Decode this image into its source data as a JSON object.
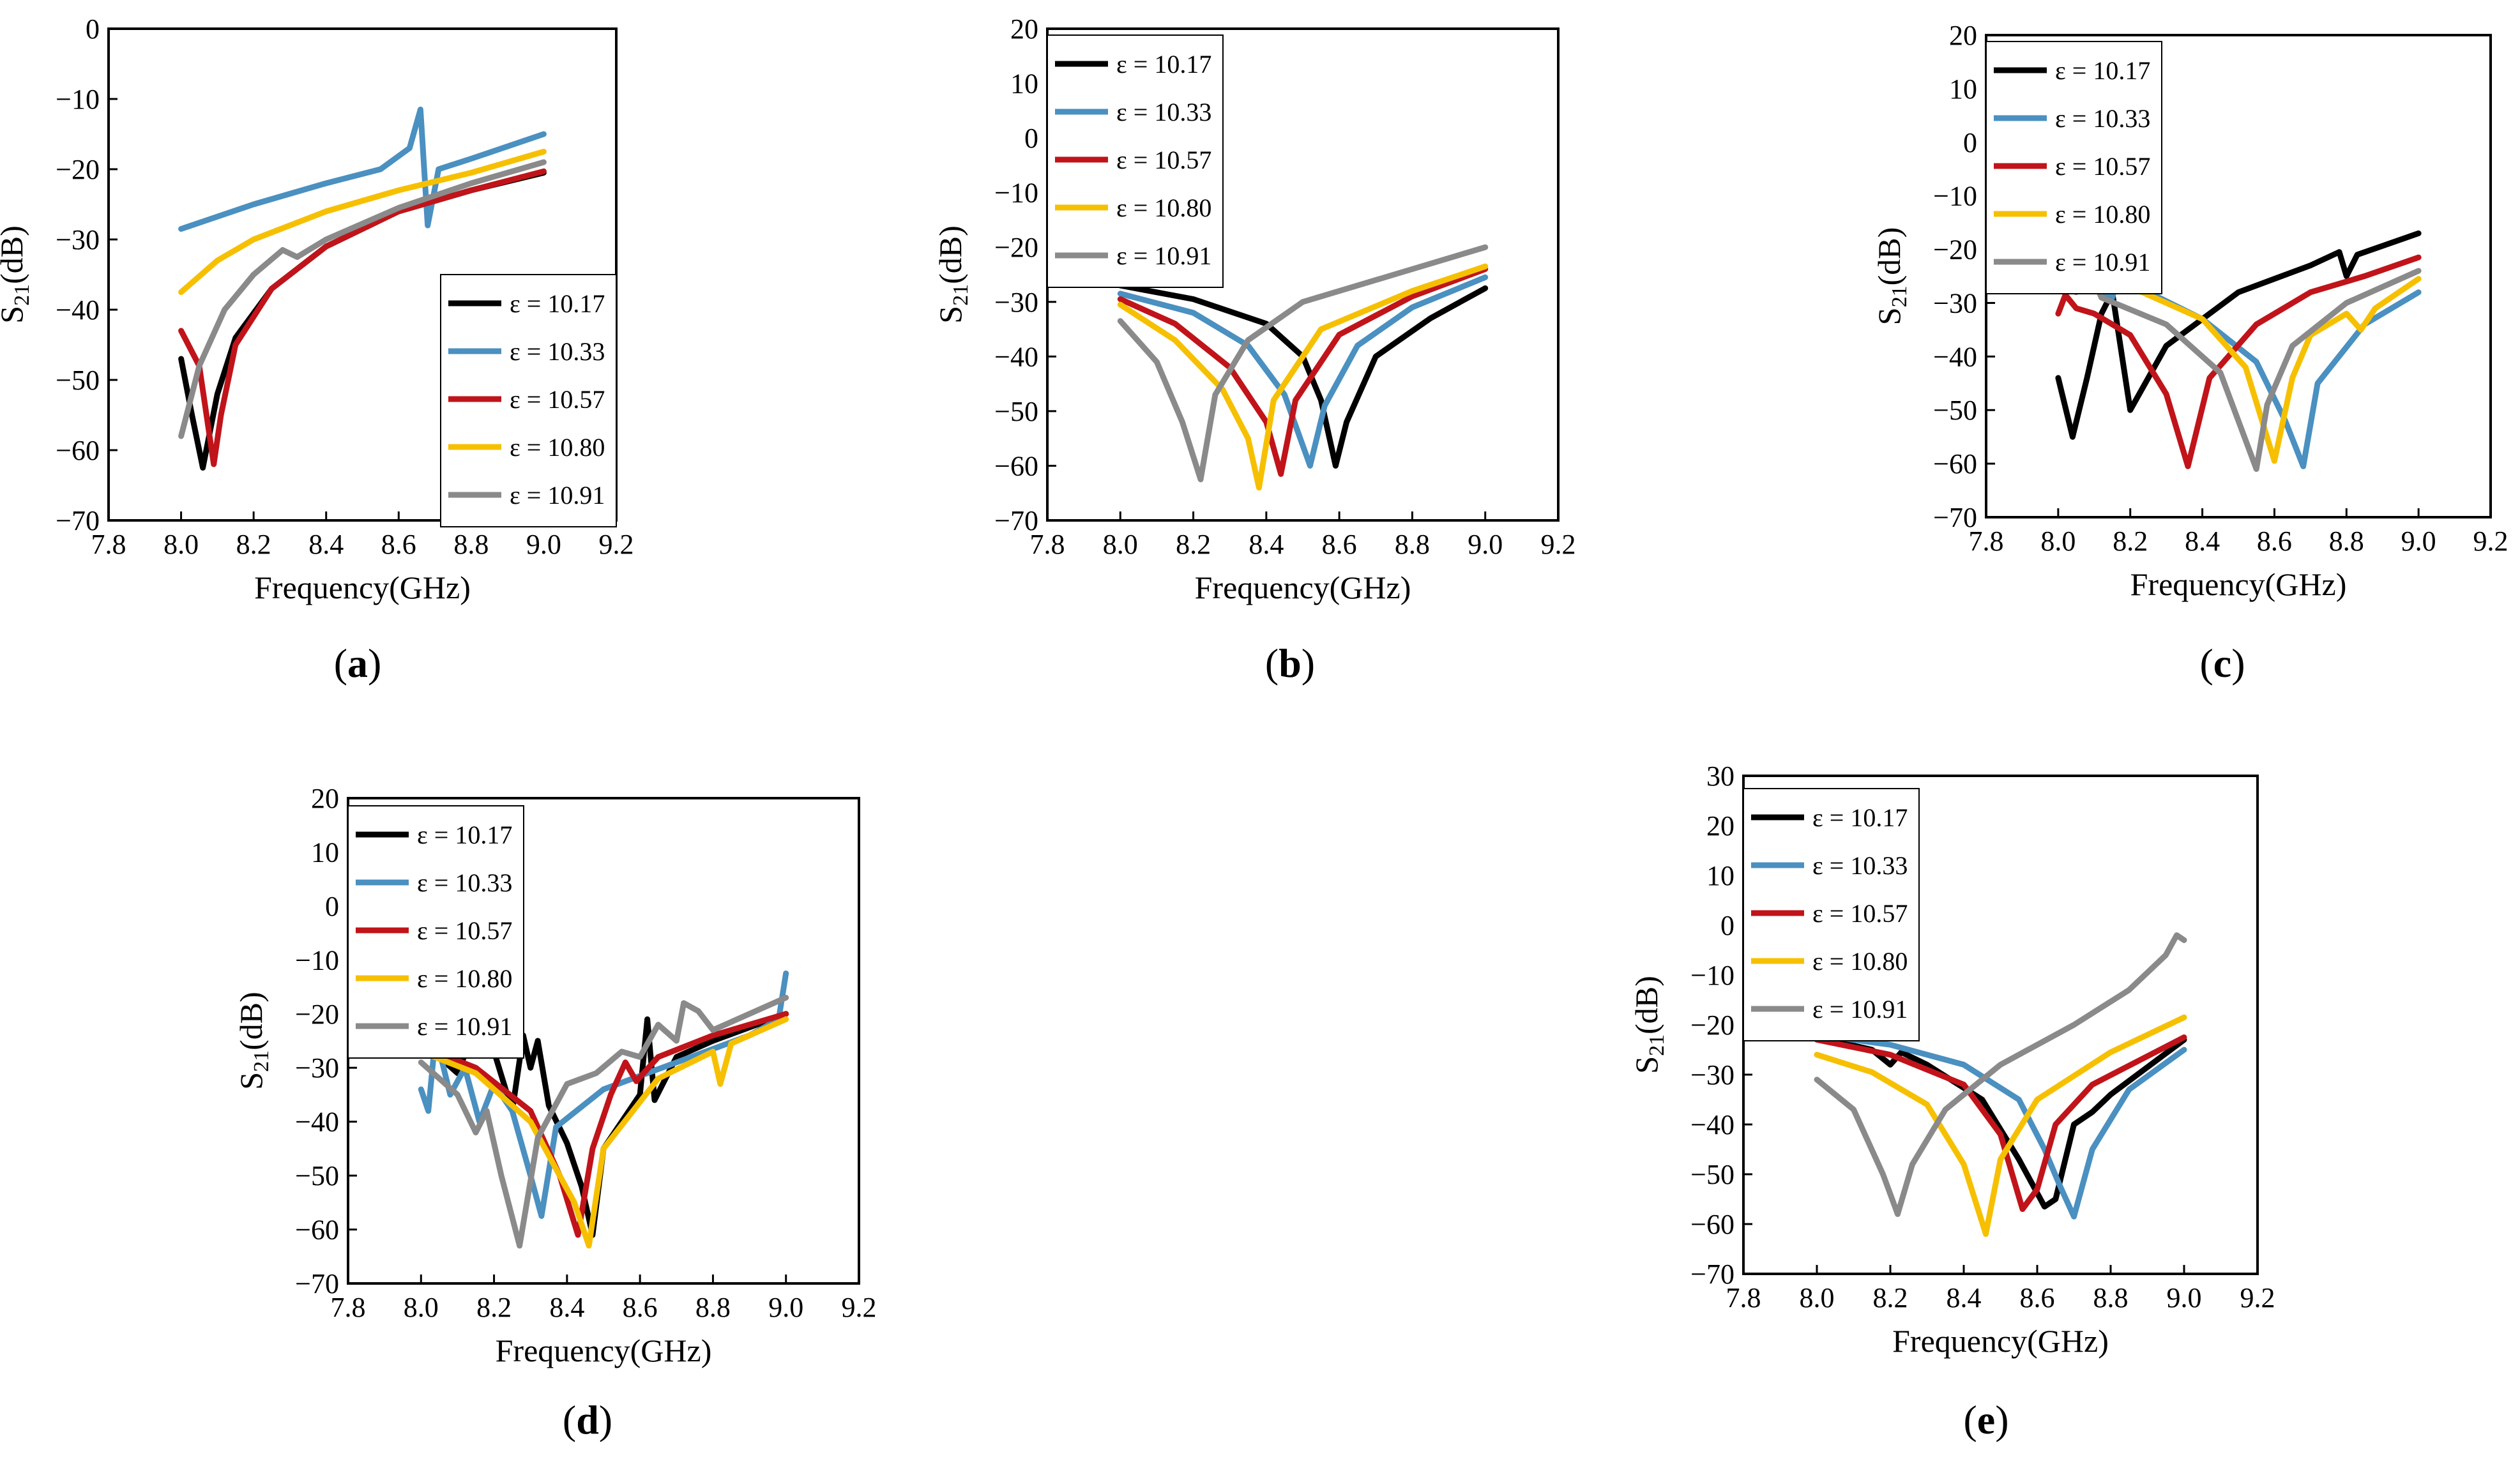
{
  "figure": {
    "series_colors": [
      "#000000",
      "#4a90c0",
      "#c0141a",
      "#f6c000",
      "#8a8a8a"
    ]
  },
  "chart_data": [
    {
      "type": "line",
      "panel_label": "a",
      "xlabel": "Frequency(GHz)",
      "ylabel_main": "S",
      "ylabel_sub": "21",
      "ylabel_unit": "(dB)",
      "xlim": [
        7.8,
        9.2
      ],
      "ylim": [
        -70,
        0
      ],
      "xticks": [
        "7.8",
        "8.0",
        "8.2",
        "8.4",
        "8.6",
        "8.8",
        "9.0",
        "9.2"
      ],
      "yticks": [
        "0",
        "−10",
        "−20",
        "−30",
        "−40",
        "−50",
        "−60",
        "−70"
      ],
      "legend_position": "bottom-right",
      "series": [
        {
          "name": "ε = 10.17",
          "x": [
            8.0,
            8.03,
            8.06,
            8.1,
            8.15,
            8.25,
            8.4,
            8.6,
            8.8,
            9.0
          ],
          "y": [
            -47,
            -55,
            -62.5,
            -52,
            -44,
            -37,
            -31,
            -26,
            -23,
            -20.5
          ]
        },
        {
          "name": "ε = 10.33",
          "x": [
            8.0,
            8.2,
            8.4,
            8.55,
            8.63,
            8.66,
            8.68,
            8.71,
            8.8,
            9.0
          ],
          "y": [
            -28.5,
            -25,
            -22,
            -20,
            -17,
            -11.5,
            -28,
            -20,
            -18.5,
            -15
          ]
        },
        {
          "name": "ε = 10.57",
          "x": [
            8.0,
            8.05,
            8.09,
            8.11,
            8.15,
            8.25,
            8.4,
            8.6,
            8.8,
            9.0
          ],
          "y": [
            -43,
            -48,
            -62,
            -55,
            -45,
            -37,
            -31,
            -26,
            -23,
            -20.3
          ]
        },
        {
          "name": "ε = 10.80",
          "x": [
            8.0,
            8.1,
            8.2,
            8.4,
            8.6,
            8.8,
            9.0
          ],
          "y": [
            -37.5,
            -33,
            -30,
            -26,
            -23,
            -20.5,
            -17.5
          ]
        },
        {
          "name": "ε = 10.91",
          "x": [
            8.0,
            8.05,
            8.12,
            8.2,
            8.28,
            8.32,
            8.4,
            8.6,
            8.8,
            9.0
          ],
          "y": [
            -58,
            -48,
            -40,
            -35,
            -31.5,
            -32.5,
            -30,
            -25.5,
            -22,
            -19
          ]
        }
      ]
    },
    {
      "type": "line",
      "panel_label": "b",
      "xlabel": "Frequency(GHz)",
      "ylabel_main": "S",
      "ylabel_sub": "21",
      "ylabel_unit": "(dB)",
      "xlim": [
        7.8,
        9.2
      ],
      "ylim": [
        -70,
        20
      ],
      "xticks": [
        "7.8",
        "8.0",
        "8.2",
        "8.4",
        "8.6",
        "8.8",
        "9.0",
        "9.2"
      ],
      "yticks": [
        "20",
        "10",
        "0",
        "−10",
        "−20",
        "−30",
        "−40",
        "−50",
        "−60",
        "−70"
      ],
      "legend_position": "top-left",
      "series": [
        {
          "name": "ε = 10.17",
          "x": [
            8.0,
            8.2,
            8.4,
            8.5,
            8.55,
            8.59,
            8.62,
            8.7,
            8.85,
            9.0
          ],
          "y": [
            -27,
            -29.5,
            -34,
            -40,
            -48,
            -60,
            -52,
            -40,
            -33,
            -27.5
          ]
        },
        {
          "name": "ε = 10.33",
          "x": [
            8.0,
            8.2,
            8.35,
            8.45,
            8.52,
            8.56,
            8.65,
            8.8,
            9.0
          ],
          "y": [
            -28.5,
            -32,
            -38,
            -47,
            -60,
            -49,
            -38,
            -31,
            -25.5
          ]
        },
        {
          "name": "ε = 10.57",
          "x": [
            8.0,
            8.15,
            8.3,
            8.4,
            8.44,
            8.48,
            8.6,
            8.8,
            9.0
          ],
          "y": [
            -29.5,
            -34,
            -42,
            -52,
            -61.5,
            -48,
            -36,
            -29,
            -24
          ]
        },
        {
          "name": "ε = 10.80",
          "x": [
            8.0,
            8.15,
            8.28,
            8.35,
            8.38,
            8.42,
            8.55,
            8.8,
            9.0
          ],
          "y": [
            -30.5,
            -37,
            -46,
            -55,
            -64,
            -48,
            -35,
            -28,
            -23.5
          ]
        },
        {
          "name": "ε = 10.91",
          "x": [
            8.0,
            8.1,
            8.17,
            8.22,
            8.26,
            8.35,
            8.5,
            8.75,
            9.0
          ],
          "y": [
            -33.5,
            -41,
            -52,
            -62.5,
            -47,
            -37,
            -30,
            -25,
            -20
          ]
        }
      ]
    },
    {
      "type": "line",
      "panel_label": "c",
      "xlabel": "Frequency(GHz)",
      "ylabel_main": "S",
      "ylabel_sub": "21",
      "ylabel_unit": "(dB)",
      "xlim": [
        7.8,
        9.2
      ],
      "ylim": [
        -70,
        20
      ],
      "xticks": [
        "7.8",
        "8.0",
        "8.2",
        "8.4",
        "8.6",
        "8.8",
        "9.0",
        "9.2"
      ],
      "yticks": [
        "20",
        "10",
        "0",
        "−10",
        "−20",
        "−30",
        "−40",
        "−50",
        "−60",
        "−70"
      ],
      "legend_position": "top-left",
      "series": [
        {
          "name": "ε = 10.17",
          "x": [
            8.0,
            8.04,
            8.08,
            8.12,
            8.15,
            8.2,
            8.3,
            8.5,
            8.7,
            8.78,
            8.8,
            8.83,
            9.0
          ],
          "y": [
            -44,
            -55,
            -44,
            -32,
            -28,
            -50,
            -38,
            -28,
            -23,
            -20.5,
            -25,
            -21,
            -17
          ]
        },
        {
          "name": "ε = 10.33",
          "x": [
            8.0,
            8.1,
            8.15,
            8.17,
            8.25,
            8.4,
            8.55,
            8.63,
            8.68,
            8.72,
            8.85,
            9.0
          ],
          "y": [
            -25,
            -27,
            -29,
            -24.5,
            -28,
            -33,
            -41,
            -52,
            -60.5,
            -45,
            -34,
            -28
          ]
        },
        {
          "name": "ε = 10.57",
          "x": [
            8.0,
            8.02,
            8.05,
            8.1,
            8.2,
            8.3,
            8.36,
            8.42,
            8.55,
            8.7,
            8.85,
            9.0
          ],
          "y": [
            -32,
            -28.5,
            -31,
            -32,
            -36,
            -47,
            -60.5,
            -44,
            -34,
            -28,
            -25,
            -21.5
          ]
        },
        {
          "name": "ε = 10.80",
          "x": [
            8.0,
            8.2,
            8.4,
            8.52,
            8.6,
            8.65,
            8.7,
            8.8,
            8.84,
            8.88,
            9.0
          ],
          "y": [
            -24.5,
            -27,
            -33,
            -42,
            -59.5,
            -44,
            -36,
            -32,
            -35,
            -31,
            -25.5
          ]
        },
        {
          "name": "ε = 10.91",
          "x": [
            8.0,
            8.05,
            8.08,
            8.12,
            8.3,
            8.45,
            8.55,
            8.58,
            8.65,
            8.8,
            9.0
          ],
          "y": [
            -26,
            -28,
            -22.5,
            -29,
            -34,
            -43,
            -61,
            -49,
            -38,
            -30,
            -24
          ]
        }
      ]
    },
    {
      "type": "line",
      "panel_label": "d",
      "xlabel": "Frequency(GHz)",
      "ylabel_main": "S",
      "ylabel_sub": "21",
      "ylabel_unit": "(dB)",
      "xlim": [
        7.8,
        9.2
      ],
      "ylim": [
        -70,
        20
      ],
      "xticks": [
        "7.8",
        "8.0",
        "8.2",
        "8.4",
        "8.6",
        "8.8",
        "9.0",
        "9.2"
      ],
      "yticks": [
        "20",
        "10",
        "0",
        "−10",
        "−20",
        "−30",
        "−40",
        "−50",
        "−60",
        "−70"
      ],
      "legend_position": "top-left",
      "series": [
        {
          "name": "ε = 10.17",
          "x": [
            8.0,
            8.05,
            8.1,
            8.15,
            8.2,
            8.25,
            8.28,
            8.3,
            8.32,
            8.35,
            8.4,
            8.44,
            8.47,
            8.5,
            8.6,
            8.62,
            8.64,
            8.7,
            8.8,
            9.0
          ],
          "y": [
            -25,
            -28,
            -31,
            -22.5,
            -27,
            -38,
            -24,
            -30,
            -25,
            -37,
            -44,
            -52,
            -61,
            -45,
            -35,
            -21,
            -36,
            -28,
            -25,
            -20
          ]
        },
        {
          "name": "ε = 10.33",
          "x": [
            8.0,
            8.02,
            8.04,
            8.08,
            8.12,
            8.16,
            8.2,
            8.25,
            8.3,
            8.33,
            8.37,
            8.5,
            8.7,
            8.9,
            8.98,
            9.0
          ],
          "y": [
            -34,
            -38,
            -24,
            -35,
            -30,
            -40,
            -33,
            -38,
            -50,
            -57.5,
            -41,
            -34,
            -29,
            -24,
            -21,
            -12.5
          ]
        },
        {
          "name": "ε = 10.57",
          "x": [
            8.0,
            8.15,
            8.3,
            8.38,
            8.43,
            8.47,
            8.52,
            8.56,
            8.59,
            8.65,
            8.8,
            9.0
          ],
          "y": [
            -26,
            -30,
            -38,
            -50,
            -61,
            -45,
            -35,
            -29,
            -32.5,
            -28,
            -24,
            -20
          ]
        },
        {
          "name": "ε = 10.80",
          "x": [
            8.0,
            8.15,
            8.3,
            8.42,
            8.46,
            8.5,
            8.65,
            8.8,
            8.82,
            8.85,
            9.0
          ],
          "y": [
            -27,
            -31,
            -40,
            -55,
            -63,
            -45,
            -32,
            -27,
            -33,
            -25.5,
            -21
          ]
        },
        {
          "name": "ε = 10.91",
          "x": [
            8.0,
            8.1,
            8.15,
            8.18,
            8.22,
            8.27,
            8.32,
            8.4,
            8.48,
            8.55,
            8.6,
            8.65,
            8.7,
            8.72,
            8.76,
            8.8,
            8.9,
            9.0
          ],
          "y": [
            -29,
            -35,
            -42,
            -38,
            -50,
            -63,
            -43,
            -33,
            -31,
            -27,
            -28,
            -22,
            -25,
            -18,
            -19.5,
            -23,
            -20,
            -17
          ]
        }
      ]
    },
    {
      "type": "line",
      "panel_label": "e",
      "xlabel": "Frequency(GHz)",
      "ylabel_main": "S",
      "ylabel_sub": "21",
      "ylabel_unit": "(dB)",
      "xlim": [
        7.8,
        9.2
      ],
      "ylim": [
        -70,
        30
      ],
      "xticks": [
        "7.8",
        "8.0",
        "8.2",
        "8.4",
        "8.6",
        "8.8",
        "9.0",
        "9.2"
      ],
      "yticks": [
        "30",
        "20",
        "10",
        "0",
        "−10",
        "−20",
        "−30",
        "−40",
        "−50",
        "−60",
        "−70"
      ],
      "legend_position": "top-left",
      "series": [
        {
          "name": "ε = 10.17",
          "x": [
            8.0,
            8.15,
            8.2,
            8.23,
            8.3,
            8.45,
            8.55,
            8.62,
            8.65,
            8.7,
            8.75,
            8.8,
            9.0
          ],
          "y": [
            -22.5,
            -25,
            -28,
            -25.5,
            -28,
            -35,
            -47,
            -56.5,
            -55,
            -40,
            -37.5,
            -34,
            -23
          ]
        },
        {
          "name": "ε = 10.33",
          "x": [
            8.0,
            8.2,
            8.4,
            8.55,
            8.62,
            8.66,
            8.7,
            8.75,
            8.85,
            9.0
          ],
          "y": [
            -22,
            -24,
            -28,
            -35,
            -45,
            -52,
            -58.5,
            -45,
            -33,
            -25
          ]
        },
        {
          "name": "ε = 10.57",
          "x": [
            8.0,
            8.2,
            8.4,
            8.5,
            8.56,
            8.6,
            8.65,
            8.75,
            9.0
          ],
          "y": [
            -23,
            -26,
            -32,
            -42,
            -57,
            -53,
            -40,
            -32,
            -22.5
          ]
        },
        {
          "name": "ε = 10.80",
          "x": [
            8.0,
            8.15,
            8.3,
            8.4,
            8.46,
            8.5,
            8.6,
            8.8,
            9.0
          ],
          "y": [
            -26,
            -29.5,
            -36,
            -48,
            -62,
            -47,
            -35,
            -25.5,
            -18.5
          ]
        },
        {
          "name": "ε = 10.91",
          "x": [
            8.0,
            8.1,
            8.18,
            8.22,
            8.26,
            8.35,
            8.5,
            8.7,
            8.85,
            8.95,
            8.98,
            9.0
          ],
          "y": [
            -31,
            -37,
            -50,
            -58,
            -48,
            -37,
            -28,
            -20,
            -13,
            -6,
            -2,
            -3
          ]
        }
      ]
    }
  ]
}
